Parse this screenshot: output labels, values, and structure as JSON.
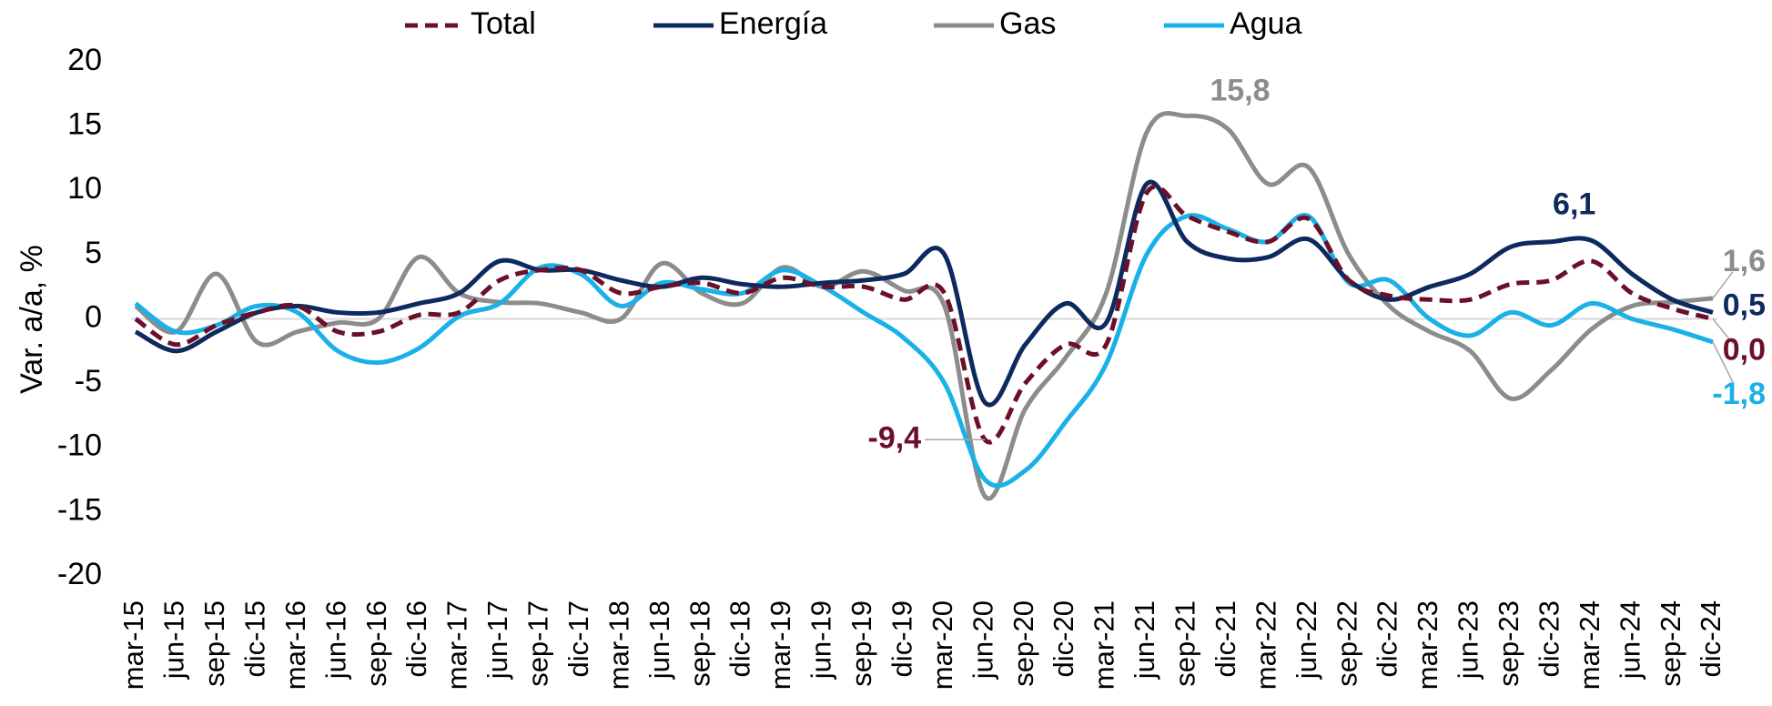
{
  "chart_data": {
    "type": "line",
    "y_label": "Var. a/a, %",
    "categories": [
      "mar-15",
      "jun-15",
      "sep-15",
      "dic-15",
      "mar-16",
      "jun-16",
      "sep-16",
      "dic-16",
      "mar-17",
      "jun-17",
      "sep-17",
      "dic-17",
      "mar-18",
      "jun-18",
      "sep-18",
      "dic-18",
      "mar-19",
      "jun-19",
      "sep-19",
      "dic-19",
      "mar-20",
      "jun-20",
      "sep-20",
      "dic-20",
      "mar-21",
      "jun-21",
      "sep-21",
      "dic-21",
      "mar-22",
      "jun-22",
      "sep-22",
      "dic-22",
      "mar-23",
      "jun-23",
      "sep-23",
      "dic-23",
      "mar-24",
      "jun-24",
      "sep-24",
      "dic-24"
    ],
    "series": [
      {
        "name": "Total",
        "color": "#6b0f2a",
        "dashed": true,
        "values": [
          0,
          -2,
          -0.5,
          0.5,
          1,
          -1,
          -1,
          0.3,
          0.5,
          3,
          3.8,
          3.8,
          2,
          2.5,
          2.8,
          2,
          3.2,
          2.5,
          2.5,
          1.5,
          2,
          -9.4,
          -5,
          -2,
          -2,
          9.8,
          8,
          6.8,
          6,
          7.8,
          3,
          1.8,
          1.5,
          1.5,
          2.7,
          3,
          4.5,
          2,
          0.8,
          0.0
        ],
        "value_labels": [
          null,
          null,
          null,
          null,
          null,
          null,
          null,
          null,
          null,
          null,
          null,
          null,
          null,
          null,
          null,
          null,
          null,
          null,
          null,
          null,
          null,
          "-9,4",
          null,
          null,
          null,
          null,
          null,
          null,
          null,
          null,
          null,
          null,
          null,
          null,
          null,
          null,
          null,
          null,
          null,
          "0,0"
        ]
      },
      {
        "name": "Energía",
        "color": "#0d2a5e",
        "dashed": false,
        "values": [
          -1,
          -2.5,
          -1,
          0.5,
          1,
          0.5,
          0.5,
          1.2,
          2,
          4.5,
          3.8,
          3.8,
          3,
          2.5,
          3.2,
          2.7,
          2.5,
          2.8,
          3,
          3.5,
          5,
          -6.5,
          -2,
          1.2,
          -0.3,
          10.5,
          6,
          4.7,
          4.8,
          6.2,
          3,
          1.5,
          2.5,
          3.5,
          5.6,
          6,
          6.1,
          3.5,
          1.5,
          0.5
        ],
        "value_labels": [
          null,
          null,
          null,
          null,
          null,
          null,
          null,
          null,
          null,
          null,
          null,
          null,
          null,
          null,
          null,
          null,
          null,
          null,
          null,
          null,
          null,
          null,
          null,
          null,
          null,
          null,
          null,
          null,
          null,
          null,
          null,
          null,
          null,
          null,
          null,
          null,
          "6,1",
          null,
          null,
          "0,5"
        ]
      },
      {
        "name": "Gas",
        "color": "#8c8c8c",
        "dashed": false,
        "values": [
          1,
          -1,
          3.5,
          -1.8,
          -1,
          -0.3,
          0,
          4.8,
          2,
          1.3,
          1.2,
          0.5,
          0,
          4.3,
          2,
          1.2,
          4,
          2.5,
          3.7,
          2.2,
          1,
          -13.8,
          -7,
          -3,
          2,
          14.5,
          15.8,
          14.8,
          10.5,
          11.8,
          5,
          1,
          -1,
          -2.5,
          -6.2,
          -4,
          -0.8,
          1,
          1.3,
          1.6
        ],
        "value_labels": [
          null,
          null,
          null,
          null,
          null,
          null,
          null,
          null,
          null,
          null,
          null,
          null,
          null,
          null,
          null,
          null,
          null,
          null,
          null,
          null,
          null,
          null,
          null,
          null,
          null,
          null,
          "15,8",
          null,
          null,
          null,
          null,
          null,
          null,
          null,
          null,
          null,
          null,
          null,
          null,
          "1,6"
        ]
      },
      {
        "name": "Agua",
        "color": "#1ab0e8",
        "dashed": false,
        "values": [
          1.2,
          -1,
          -0.5,
          1,
          0.5,
          -2.5,
          -3.4,
          -2.3,
          0.2,
          1.2,
          4,
          3.5,
          1,
          2.8,
          2.3,
          2,
          3.8,
          2.5,
          0.5,
          -1.5,
          -5,
          -12.5,
          -11.8,
          -8,
          -3.5,
          5,
          8,
          7,
          6,
          8,
          2.8,
          3,
          0,
          -1.3,
          0.5,
          -0.5,
          1.2,
          0,
          -0.8,
          -1.8
        ],
        "value_labels": [
          null,
          null,
          null,
          null,
          null,
          null,
          null,
          null,
          null,
          null,
          null,
          null,
          null,
          null,
          null,
          null,
          null,
          null,
          null,
          null,
          null,
          null,
          null,
          null,
          null,
          null,
          null,
          null,
          null,
          null,
          null,
          null,
          null,
          null,
          null,
          null,
          null,
          null,
          null,
          "-1,8"
        ]
      }
    ],
    "ylim": [
      -20,
      20
    ],
    "yticks": [
      -20,
      -15,
      -10,
      -5,
      0,
      5,
      10,
      15,
      20
    ],
    "grid": false
  }
}
